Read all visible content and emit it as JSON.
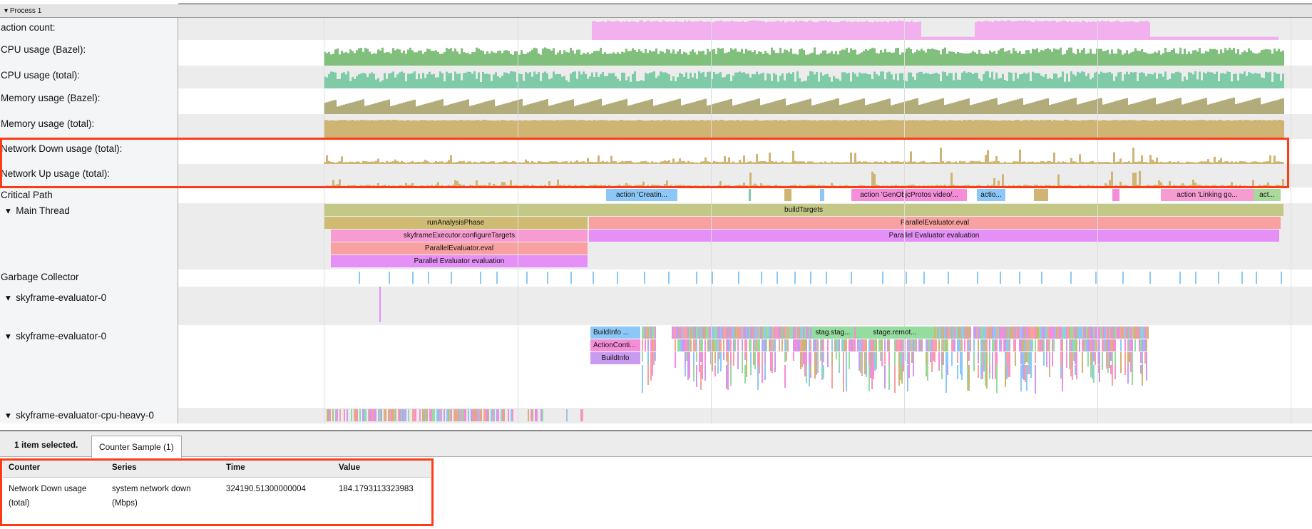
{
  "process": {
    "label": "Process 1"
  },
  "tracks": [
    {
      "label": "action count:",
      "color": "#f3b0ee"
    },
    {
      "label": "CPU usage (Bazel):",
      "color": "#80bf7c"
    },
    {
      "label": "CPU usage (total):",
      "color": "#7fcba8"
    },
    {
      "label": "Memory usage (Bazel):",
      "color": "#b2ac7a"
    },
    {
      "label": "Memory usage (total):",
      "color": "#cfb473"
    },
    {
      "label": "Network Down usage (total):",
      "color": "#cfb473"
    },
    {
      "label": "Network Up usage (total):",
      "color": "#cfb473"
    }
  ],
  "threads": {
    "critical": "Critical Path",
    "main": "Main Thread",
    "gc": "Garbage Collector",
    "eval1": "skyframe-evaluator-0",
    "eval2": "skyframe-evaluator-0",
    "cpuheavy": "skyframe-evaluator-cpu-heavy-0"
  },
  "critical_slices": [
    "action 'Creatin...",
    "action 'GenObjcProtos video/...",
    "actio...",
    "action 'Linking go...",
    "act..."
  ],
  "main_slices": {
    "buildTargets": "buildTargets",
    "runAnalysis": "runAnalysisPhase",
    "configure": "skyframeExecutor.configureTargets",
    "pe_eval_1": "ParallelEvaluator.eval",
    "pe_evaluation_1": "Parallel Evaluator evaluation",
    "pe_eval_2": "ParallelEvaluator.eval",
    "pe_evaluation_2": "Parallel Evaluator evaluation"
  },
  "eval_slices": {
    "buildinfo1": "BuildInfo ...",
    "actioncont": "ActionConti...",
    "buildinfo2": "BuildInfo",
    "stage1": "stag.stag...",
    "stage2": "stage.remot..."
  },
  "bottom": {
    "selected": "1 item selected.",
    "tab": "Counter Sample (1)",
    "columns": [
      "Counter",
      "Series",
      "Time",
      "Value"
    ],
    "rows": [
      {
        "counter": "Network Down usage (total)",
        "series": "system network down (Mbps)",
        "time": "324190.51300000004",
        "value": "184.1793113323983"
      }
    ]
  },
  "highlight_color": "#ff3b16"
}
